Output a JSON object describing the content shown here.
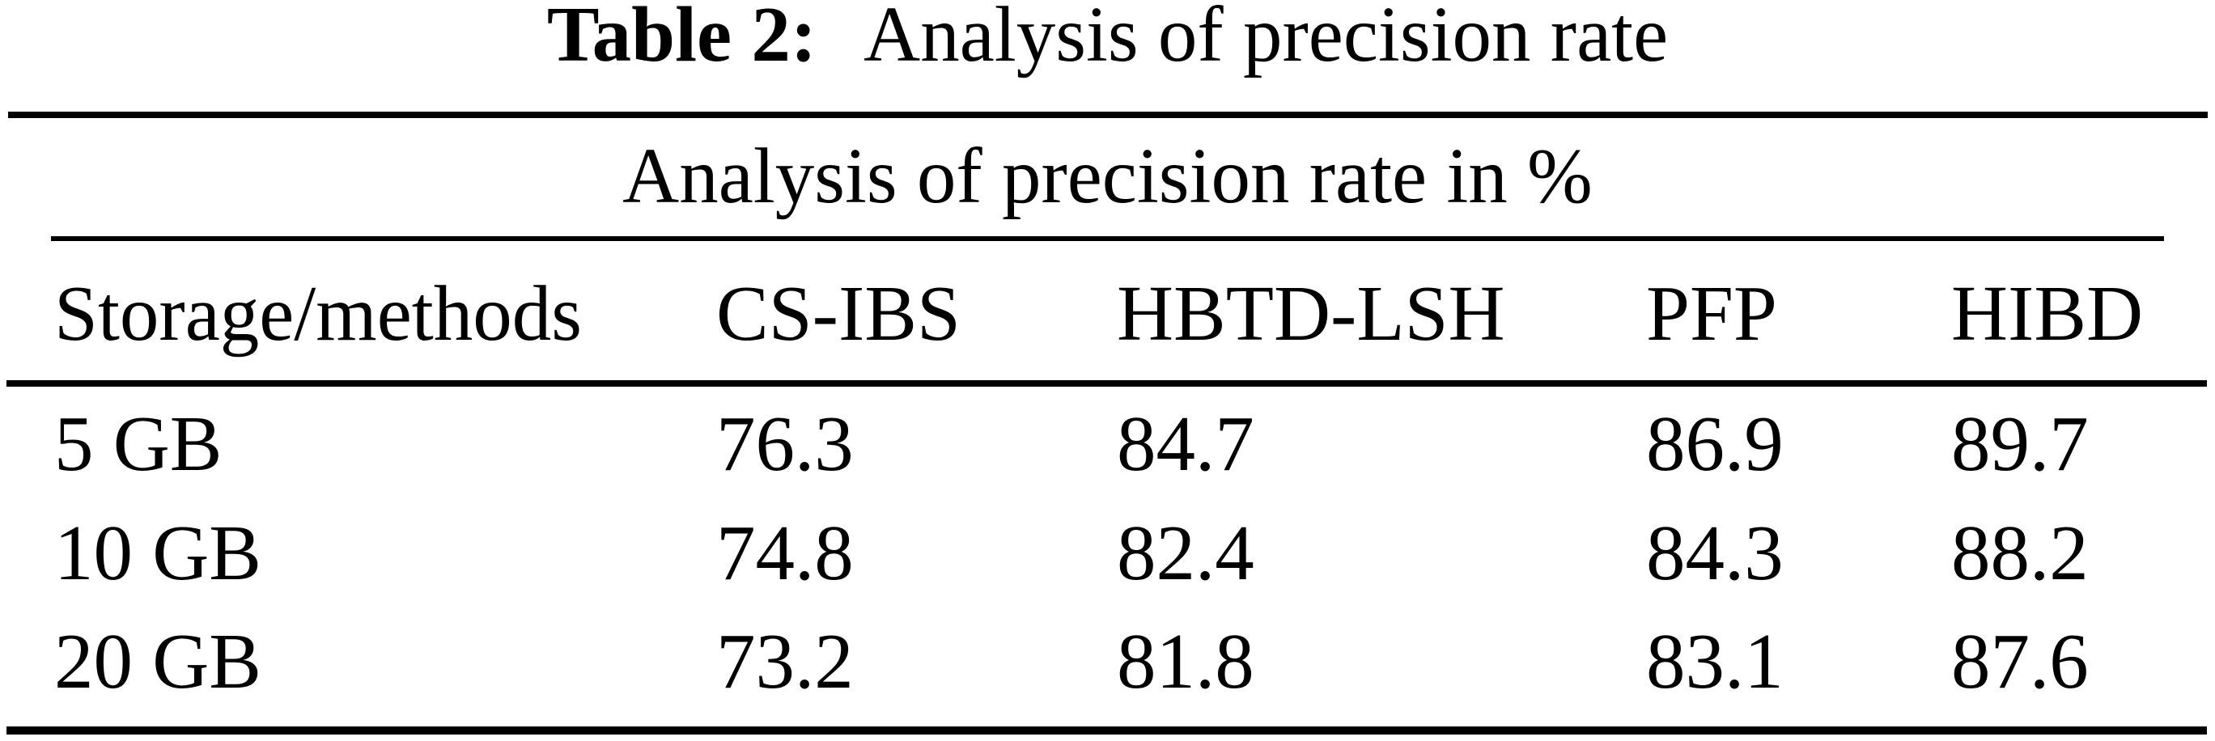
{
  "caption": {
    "label": "Table 2:",
    "title": "Analysis of precision rate"
  },
  "table": {
    "title": "Analysis of precision rate in %",
    "columns": [
      "Storage/methods",
      "CS-IBS",
      "HBTD-LSH",
      "PFP",
      "HIBD"
    ],
    "rows": [
      [
        "5 GB",
        "76.3",
        "84.7",
        "86.9",
        "89.7"
      ],
      [
        "10 GB",
        "74.8",
        "82.4",
        "84.3",
        "88.2"
      ],
      [
        "20 GB",
        "73.2",
        "81.8",
        "83.1",
        "87.6"
      ]
    ]
  },
  "colors": {
    "background": "#ffffff",
    "text": "#000000",
    "rule": "#000000"
  }
}
